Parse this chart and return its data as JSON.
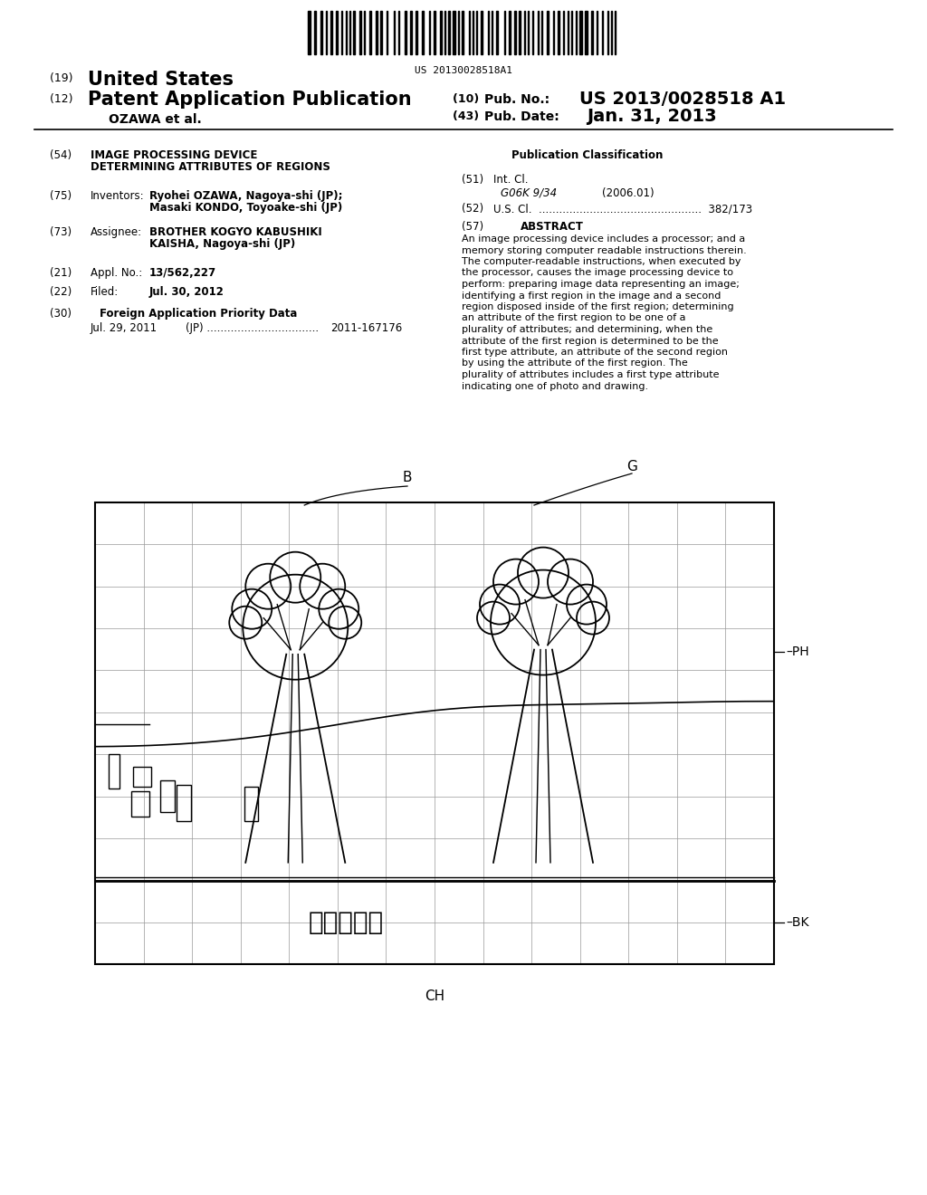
{
  "title_19": "(19) United States",
  "title_12": "(12) Patent Application Publication",
  "pub_no_label": "(10) Pub. No.:",
  "pub_no": "US 2013/0028518 A1",
  "pub_date_label": "(43) Pub. Date:",
  "pub_date": "Jan. 31, 2013",
  "inventor_label": "OZAWA et al.",
  "barcode_text": "US 20130028518A1",
  "field54_label": "(54)",
  "field54_title1": "IMAGE PROCESSING DEVICE",
  "field54_title2": "DETERMINING ATTRIBUTES OF REGIONS",
  "field75_label": "(75)",
  "field75_name": "Inventors:",
  "field75_val1": "Ryohei OZAWA, Nagoya-shi (JP);",
  "field75_val2": "Masaki KONDO, Toyoake-shi (JP)",
  "field73_label": "(73)",
  "field73_name": "Assignee:",
  "field73_val1": "BROTHER KOGYO KABUSHIKI",
  "field73_val2": "KAISHA, Nagoya-shi (JP)",
  "field21_label": "(21)",
  "field21_name": "Appl. No.:",
  "field21_val": "13/562,227",
  "field22_label": "(22)",
  "field22_name": "Filed:",
  "field22_val": "Jul. 30, 2012",
  "field30_label": "(30)",
  "field30_name": "Foreign Application Priority Data",
  "field30_date": "Jul. 29, 2011",
  "field30_country": "(JP)",
  "field30_num": "2011-167176",
  "pub_class_title": "Publication Classification",
  "field51_label": "(51)",
  "field51_name": "Int. Cl.",
  "field51_code": "G06K 9/34",
  "field51_year": "(2006.01)",
  "field52_label": "(52)",
  "field52_name": "U.S. Cl.",
  "field52_val": "382/173",
  "field57_label": "(57)",
  "field57_name": "ABSTRACT",
  "abstract_text": "An image processing device includes a processor; and a memory storing computer readable instructions therein. The computer-readable instructions, when executed by the processor, causes the image processing device to perform: preparing image data representing an image; identifying a first region in the image and a second region disposed inside of the first region; determining an attribute of the first region to be one of a plurality of attributes; and determining, when the attribute of the first region is determined to be the first type attribute, an attribute of the second region by using the attribute of the first region. The plurality of attributes includes a first type attribute indicating one of photo and drawing.",
  "diagram_label_B": "B",
  "diagram_label_G": "G",
  "diagram_label_PH": "PH",
  "diagram_label_BK": "BK",
  "diagram_label_CH": "CH",
  "bg_color": "#ffffff",
  "text_color": "#000000",
  "diagram_color": "#000000",
  "grid_color": "#999999"
}
